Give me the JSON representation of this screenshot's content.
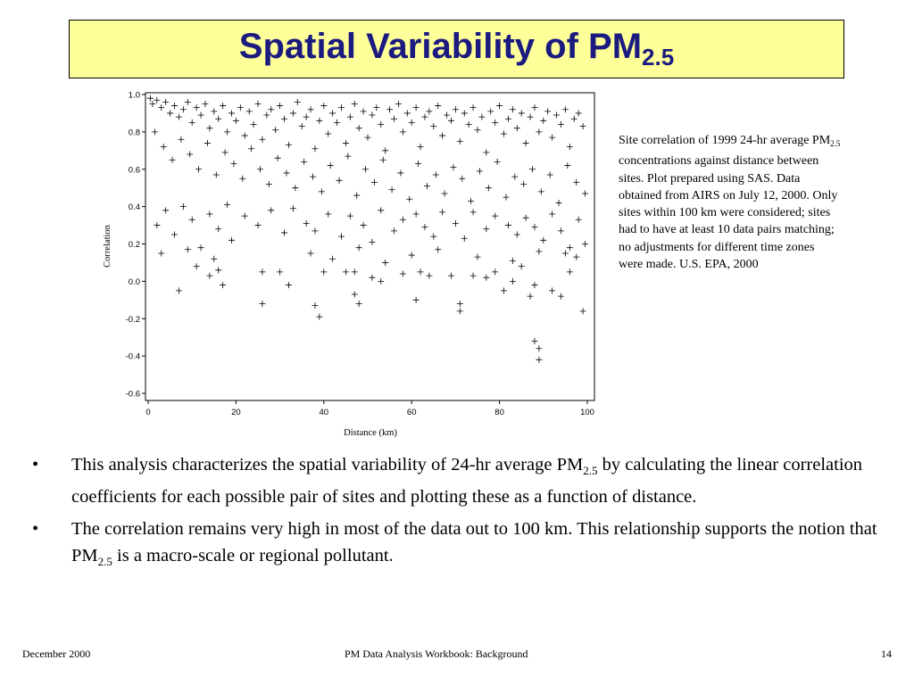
{
  "title": {
    "text": "Spatial Variability of PM",
    "subscript": "2.5"
  },
  "caption": {
    "before": "Site correlation of 1999 24-hr average PM",
    "subscript": "2.5",
    "after": " concentrations against distance between sites.  Plot prepared using SAS.  Data obtained from AIRS on July 12, 2000. Only sites within 100 km were considered; sites had to have at least 10 data pairs matching; no adjustments for different time zones were made. U.S. EPA, 2000"
  },
  "bullets": [
    {
      "before": "This analysis characterizes the spatial variability of 24-hr average PM",
      "subscript": "2.5",
      "after": " by calculating the linear correlation coefficients for each possible pair of sites and plotting these as a function of distance."
    },
    {
      "before": "The correlation remains very high in most of the data out to 100 km.  This relationship supports the notion that PM",
      "subscript": "2.5",
      "after": " is a macro-scale or regional pollutant."
    }
  ],
  "bullet_symbol": "•",
  "footer": {
    "date": "December 2000",
    "center": "PM Data Analysis Workbook: Background",
    "page": "14"
  },
  "colors": {
    "title_bg": "#ffff99",
    "title_text": "#1a1a80",
    "marker": "#000000"
  },
  "chart_data": {
    "type": "scatter",
    "title": "",
    "xlabel": "Distance (km)",
    "ylabel": "Correlation",
    "xlim": [
      0,
      100
    ],
    "ylim": [
      -0.6,
      1.0
    ],
    "x_ticks": [
      "0",
      "20",
      "40",
      "60",
      "80",
      "100"
    ],
    "y_ticks": [
      "1.0",
      "0.8",
      "0.6",
      "0.4",
      "0.2",
      "0.0",
      "-0.2",
      "-0.4",
      "-0.6"
    ],
    "marker": "+",
    "grid": false,
    "points": [
      [
        0.5,
        0.98
      ],
      [
        1,
        0.95
      ],
      [
        2,
        0.97
      ],
      [
        3,
        0.93
      ],
      [
        4,
        0.96
      ],
      [
        5,
        0.9
      ],
      [
        6,
        0.94
      ],
      [
        7,
        0.88
      ],
      [
        8,
        0.92
      ],
      [
        9,
        0.96
      ],
      [
        10,
        0.85
      ],
      [
        11,
        0.93
      ],
      [
        12,
        0.89
      ],
      [
        13,
        0.95
      ],
      [
        14,
        0.82
      ],
      [
        15,
        0.91
      ],
      [
        16,
        0.87
      ],
      [
        17,
        0.94
      ],
      [
        18,
        0.8
      ],
      [
        19,
        0.9
      ],
      [
        20,
        0.86
      ],
      [
        21,
        0.93
      ],
      [
        22,
        0.78
      ],
      [
        23,
        0.91
      ],
      [
        24,
        0.84
      ],
      [
        25,
        0.95
      ],
      [
        26,
        0.76
      ],
      [
        27,
        0.89
      ],
      [
        28,
        0.92
      ],
      [
        29,
        0.81
      ],
      [
        30,
        0.94
      ],
      [
        31,
        0.87
      ],
      [
        32,
        0.73
      ],
      [
        33,
        0.9
      ],
      [
        34,
        0.96
      ],
      [
        35,
        0.83
      ],
      [
        36,
        0.88
      ],
      [
        37,
        0.92
      ],
      [
        38,
        0.71
      ],
      [
        39,
        0.86
      ],
      [
        40,
        0.94
      ],
      [
        41,
        0.79
      ],
      [
        42,
        0.9
      ],
      [
        43,
        0.85
      ],
      [
        44,
        0.93
      ],
      [
        45,
        0.74
      ],
      [
        46,
        0.88
      ],
      [
        47,
        0.95
      ],
      [
        48,
        0.82
      ],
      [
        49,
        0.91
      ],
      [
        50,
        0.77
      ],
      [
        51,
        0.89
      ],
      [
        52,
        0.93
      ],
      [
        53,
        0.84
      ],
      [
        54,
        0.7
      ],
      [
        55,
        0.92
      ],
      [
        56,
        0.87
      ],
      [
        57,
        0.95
      ],
      [
        58,
        0.8
      ],
      [
        59,
        0.9
      ],
      [
        60,
        0.85
      ],
      [
        61,
        0.93
      ],
      [
        62,
        0.72
      ],
      [
        63,
        0.88
      ],
      [
        64,
        0.91
      ],
      [
        65,
        0.83
      ],
      [
        66,
        0.94
      ],
      [
        67,
        0.78
      ],
      [
        68,
        0.89
      ],
      [
        69,
        0.86
      ],
      [
        70,
        0.92
      ],
      [
        71,
        0.75
      ],
      [
        72,
        0.9
      ],
      [
        73,
        0.84
      ],
      [
        74,
        0.93
      ],
      [
        75,
        0.81
      ],
      [
        76,
        0.88
      ],
      [
        77,
        0.69
      ],
      [
        78,
        0.91
      ],
      [
        79,
        0.85
      ],
      [
        80,
        0.94
      ],
      [
        81,
        0.79
      ],
      [
        82,
        0.87
      ],
      [
        83,
        0.92
      ],
      [
        84,
        0.82
      ],
      [
        85,
        0.9
      ],
      [
        86,
        0.74
      ],
      [
        87,
        0.88
      ],
      [
        88,
        0.93
      ],
      [
        89,
        0.8
      ],
      [
        90,
        0.86
      ],
      [
        91,
        0.91
      ],
      [
        92,
        0.77
      ],
      [
        93,
        0.89
      ],
      [
        94,
        0.84
      ],
      [
        95,
        0.92
      ],
      [
        96,
        0.72
      ],
      [
        97,
        0.87
      ],
      [
        98,
        0.9
      ],
      [
        99,
        0.83
      ],
      [
        1.5,
        0.8
      ],
      [
        3.5,
        0.72
      ],
      [
        5.5,
        0.65
      ],
      [
        7.5,
        0.76
      ],
      [
        9.5,
        0.68
      ],
      [
        11.5,
        0.6
      ],
      [
        13.5,
        0.74
      ],
      [
        15.5,
        0.57
      ],
      [
        17.5,
        0.69
      ],
      [
        19.5,
        0.63
      ],
      [
        21.5,
        0.55
      ],
      [
        23.5,
        0.71
      ],
      [
        25.5,
        0.6
      ],
      [
        27.5,
        0.52
      ],
      [
        29.5,
        0.66
      ],
      [
        31.5,
        0.58
      ],
      [
        33.5,
        0.5
      ],
      [
        35.5,
        0.64
      ],
      [
        37.5,
        0.56
      ],
      [
        39.5,
        0.48
      ],
      [
        41.5,
        0.62
      ],
      [
        43.5,
        0.54
      ],
      [
        45.5,
        0.67
      ],
      [
        47.5,
        0.46
      ],
      [
        49.5,
        0.6
      ],
      [
        51.5,
        0.53
      ],
      [
        53.5,
        0.65
      ],
      [
        55.5,
        0.49
      ],
      [
        57.5,
        0.58
      ],
      [
        59.5,
        0.44
      ],
      [
        61.5,
        0.63
      ],
      [
        63.5,
        0.51
      ],
      [
        65.5,
        0.57
      ],
      [
        67.5,
        0.47
      ],
      [
        69.5,
        0.61
      ],
      [
        71.5,
        0.55
      ],
      [
        73.5,
        0.43
      ],
      [
        75.5,
        0.59
      ],
      [
        77.5,
        0.5
      ],
      [
        79.5,
        0.64
      ],
      [
        81.5,
        0.45
      ],
      [
        83.5,
        0.56
      ],
      [
        85.5,
        0.52
      ],
      [
        87.5,
        0.6
      ],
      [
        89.5,
        0.48
      ],
      [
        91.5,
        0.57
      ],
      [
        93.5,
        0.42
      ],
      [
        95.5,
        0.62
      ],
      [
        97.5,
        0.53
      ],
      [
        99.5,
        0.47
      ],
      [
        2,
        0.3
      ],
      [
        4,
        0.38
      ],
      [
        6,
        0.25
      ],
      [
        8,
        0.4
      ],
      [
        10,
        0.33
      ],
      [
        12,
        0.18
      ],
      [
        14,
        0.36
      ],
      [
        16,
        0.28
      ],
      [
        18,
        0.41
      ],
      [
        19,
        0.22
      ],
      [
        22,
        0.35
      ],
      [
        25,
        0.3
      ],
      [
        28,
        0.38
      ],
      [
        31,
        0.26
      ],
      [
        33,
        0.39
      ],
      [
        36,
        0.31
      ],
      [
        38,
        0.27
      ],
      [
        41,
        0.36
      ],
      [
        44,
        0.24
      ],
      [
        46,
        0.35
      ],
      [
        49,
        0.3
      ],
      [
        51,
        0.21
      ],
      [
        53,
        0.38
      ],
      [
        56,
        0.27
      ],
      [
        58,
        0.33
      ],
      [
        61,
        0.36
      ],
      [
        63,
        0.29
      ],
      [
        65,
        0.24
      ],
      [
        67,
        0.37
      ],
      [
        70,
        0.31
      ],
      [
        72,
        0.23
      ],
      [
        74,
        0.37
      ],
      [
        77,
        0.28
      ],
      [
        79,
        0.35
      ],
      [
        82,
        0.3
      ],
      [
        84,
        0.25
      ],
      [
        86,
        0.34
      ],
      [
        88,
        0.29
      ],
      [
        90,
        0.22
      ],
      [
        92,
        0.36
      ],
      [
        94,
        0.27
      ],
      [
        96,
        0.18
      ],
      [
        98,
        0.33
      ],
      [
        99.5,
        0.2
      ],
      [
        3,
        0.15
      ],
      [
        9,
        0.17
      ],
      [
        15,
        0.12
      ],
      [
        37,
        0.15
      ],
      [
        42,
        0.12
      ],
      [
        48,
        0.18
      ],
      [
        54,
        0.1
      ],
      [
        60,
        0.14
      ],
      [
        66,
        0.17
      ],
      [
        75,
        0.13
      ],
      [
        83,
        0.11
      ],
      [
        89,
        0.16
      ],
      [
        95,
        0.15
      ],
      [
        97.5,
        0.13
      ],
      [
        7,
        -0.05
      ],
      [
        11,
        0.08
      ],
      [
        14,
        0.03
      ],
      [
        16,
        0.06
      ],
      [
        17,
        -0.02
      ],
      [
        26,
        0.05
      ],
      [
        30,
        0.05
      ],
      [
        32,
        -0.02
      ],
      [
        40,
        0.05
      ],
      [
        45,
        0.05
      ],
      [
        47,
        0.05
      ],
      [
        51,
        0.02
      ],
      [
        53,
        0.0
      ],
      [
        58,
        0.04
      ],
      [
        62,
        0.05
      ],
      [
        64,
        0.03
      ],
      [
        69,
        0.03
      ],
      [
        74,
        0.03
      ],
      [
        77,
        0.02
      ],
      [
        79,
        0.05
      ],
      [
        81,
        -0.05
      ],
      [
        83,
        0.0
      ],
      [
        85,
        0.08
      ],
      [
        88,
        -0.02
      ],
      [
        92,
        -0.05
      ],
      [
        96,
        0.05
      ],
      [
        26,
        -0.12
      ],
      [
        38,
        -0.13
      ],
      [
        39,
        -0.19
      ],
      [
        47,
        -0.07
      ],
      [
        48,
        -0.12
      ],
      [
        61,
        -0.1
      ],
      [
        71,
        -0.12
      ],
      [
        71,
        -0.16
      ],
      [
        87,
        -0.08
      ],
      [
        94,
        -0.08
      ],
      [
        99,
        -0.16
      ],
      [
        88,
        -0.32
      ],
      [
        89,
        -0.36
      ],
      [
        89,
        -0.42
      ]
    ]
  }
}
